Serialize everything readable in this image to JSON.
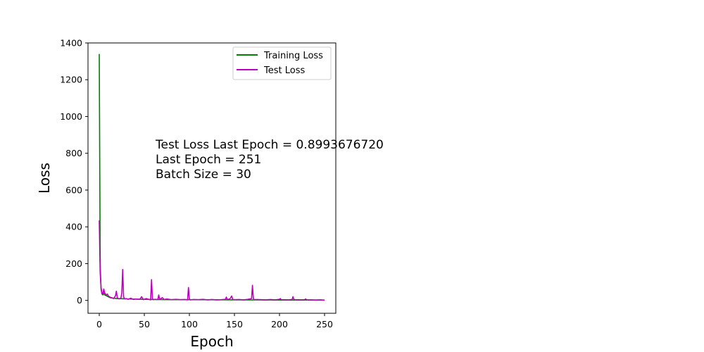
{
  "chart_data": {
    "type": "line",
    "xlabel": "Epoch",
    "ylabel": "Loss",
    "xlim": [
      -12.5,
      262.5
    ],
    "ylim": [
      -70,
      1400
    ],
    "x_ticks": [
      0,
      50,
      100,
      150,
      200,
      250
    ],
    "y_ticks": [
      0,
      200,
      400,
      600,
      800,
      1000,
      1200,
      1400
    ],
    "grid": false,
    "legend_position": "top-right",
    "annotations": [
      "Test Loss Last Epoch = 0.8993676720",
      "Last Epoch = 251",
      "Batch Size = 30"
    ],
    "series": [
      {
        "name": "Training Loss",
        "color": "#008000",
        "points": [
          [
            0,
            1340
          ],
          [
            1,
            200
          ],
          [
            2,
            60
          ],
          [
            3,
            35
          ],
          [
            4,
            30
          ],
          [
            5,
            40
          ],
          [
            6,
            30
          ],
          [
            8,
            25
          ],
          [
            10,
            20
          ],
          [
            12,
            15
          ],
          [
            15,
            12
          ],
          [
            20,
            10
          ],
          [
            25,
            9
          ],
          [
            30,
            8
          ],
          [
            40,
            7
          ],
          [
            50,
            6
          ],
          [
            60,
            5
          ],
          [
            80,
            4
          ],
          [
            100,
            4
          ],
          [
            150,
            3
          ],
          [
            200,
            2
          ],
          [
            250,
            2
          ]
        ]
      },
      {
        "name": "Test Loss",
        "color": "#bf00bf",
        "points": [
          [
            0,
            435
          ],
          [
            1,
            150
          ],
          [
            2,
            70
          ],
          [
            3,
            40
          ],
          [
            4,
            35
          ],
          [
            5,
            62
          ],
          [
            6,
            40
          ],
          [
            7,
            35
          ],
          [
            8,
            28
          ],
          [
            9,
            35
          ],
          [
            10,
            25
          ],
          [
            11,
            20
          ],
          [
            12,
            18
          ],
          [
            13,
            15
          ],
          [
            14,
            15
          ],
          [
            15,
            12
          ],
          [
            16,
            10
          ],
          [
            17,
            18
          ],
          [
            18,
            25
          ],
          [
            19,
            50
          ],
          [
            20,
            15
          ],
          [
            21,
            10
          ],
          [
            22,
            8
          ],
          [
            23,
            10
          ],
          [
            24,
            12
          ],
          [
            25,
            40
          ],
          [
            26,
            168
          ],
          [
            27,
            20
          ],
          [
            28,
            8
          ],
          [
            30,
            10
          ],
          [
            32,
            6
          ],
          [
            35,
            12
          ],
          [
            38,
            5
          ],
          [
            40,
            8
          ],
          [
            45,
            6
          ],
          [
            47,
            20
          ],
          [
            49,
            4
          ],
          [
            52,
            10
          ],
          [
            55,
            6
          ],
          [
            57,
            3
          ],
          [
            58,
            113
          ],
          [
            59,
            10
          ],
          [
            60,
            4
          ],
          [
            62,
            6
          ],
          [
            65,
            5
          ],
          [
            66,
            30
          ],
          [
            67,
            5
          ],
          [
            70,
            15
          ],
          [
            72,
            5
          ],
          [
            75,
            8
          ],
          [
            80,
            4
          ],
          [
            85,
            6
          ],
          [
            90,
            4
          ],
          [
            95,
            5
          ],
          [
            98,
            3
          ],
          [
            99,
            70
          ],
          [
            100,
            8
          ],
          [
            101,
            3
          ],
          [
            105,
            5
          ],
          [
            110,
            4
          ],
          [
            115,
            6
          ],
          [
            120,
            3
          ],
          [
            125,
            5
          ],
          [
            130,
            3
          ],
          [
            135,
            4
          ],
          [
            140,
            6
          ],
          [
            141,
            18
          ],
          [
            142,
            5
          ],
          [
            145,
            8
          ],
          [
            147,
            24
          ],
          [
            148,
            6
          ],
          [
            150,
            4
          ],
          [
            155,
            5
          ],
          [
            160,
            3
          ],
          [
            165,
            6
          ],
          [
            169,
            10
          ],
          [
            170,
            82
          ],
          [
            171,
            10
          ],
          [
            172,
            4
          ],
          [
            175,
            5
          ],
          [
            180,
            4
          ],
          [
            185,
            3
          ],
          [
            190,
            5
          ],
          [
            195,
            3
          ],
          [
            200,
            6
          ],
          [
            201,
            10
          ],
          [
            202,
            3
          ],
          [
            205,
            4
          ],
          [
            210,
            3
          ],
          [
            214,
            5
          ],
          [
            215,
            20
          ],
          [
            216,
            5
          ],
          [
            218,
            3
          ],
          [
            220,
            4
          ],
          [
            225,
            3
          ],
          [
            228,
            4
          ],
          [
            229,
            8
          ],
          [
            230,
            3
          ],
          [
            235,
            3
          ],
          [
            240,
            2
          ],
          [
            245,
            3
          ],
          [
            250,
            1
          ]
        ]
      }
    ]
  }
}
